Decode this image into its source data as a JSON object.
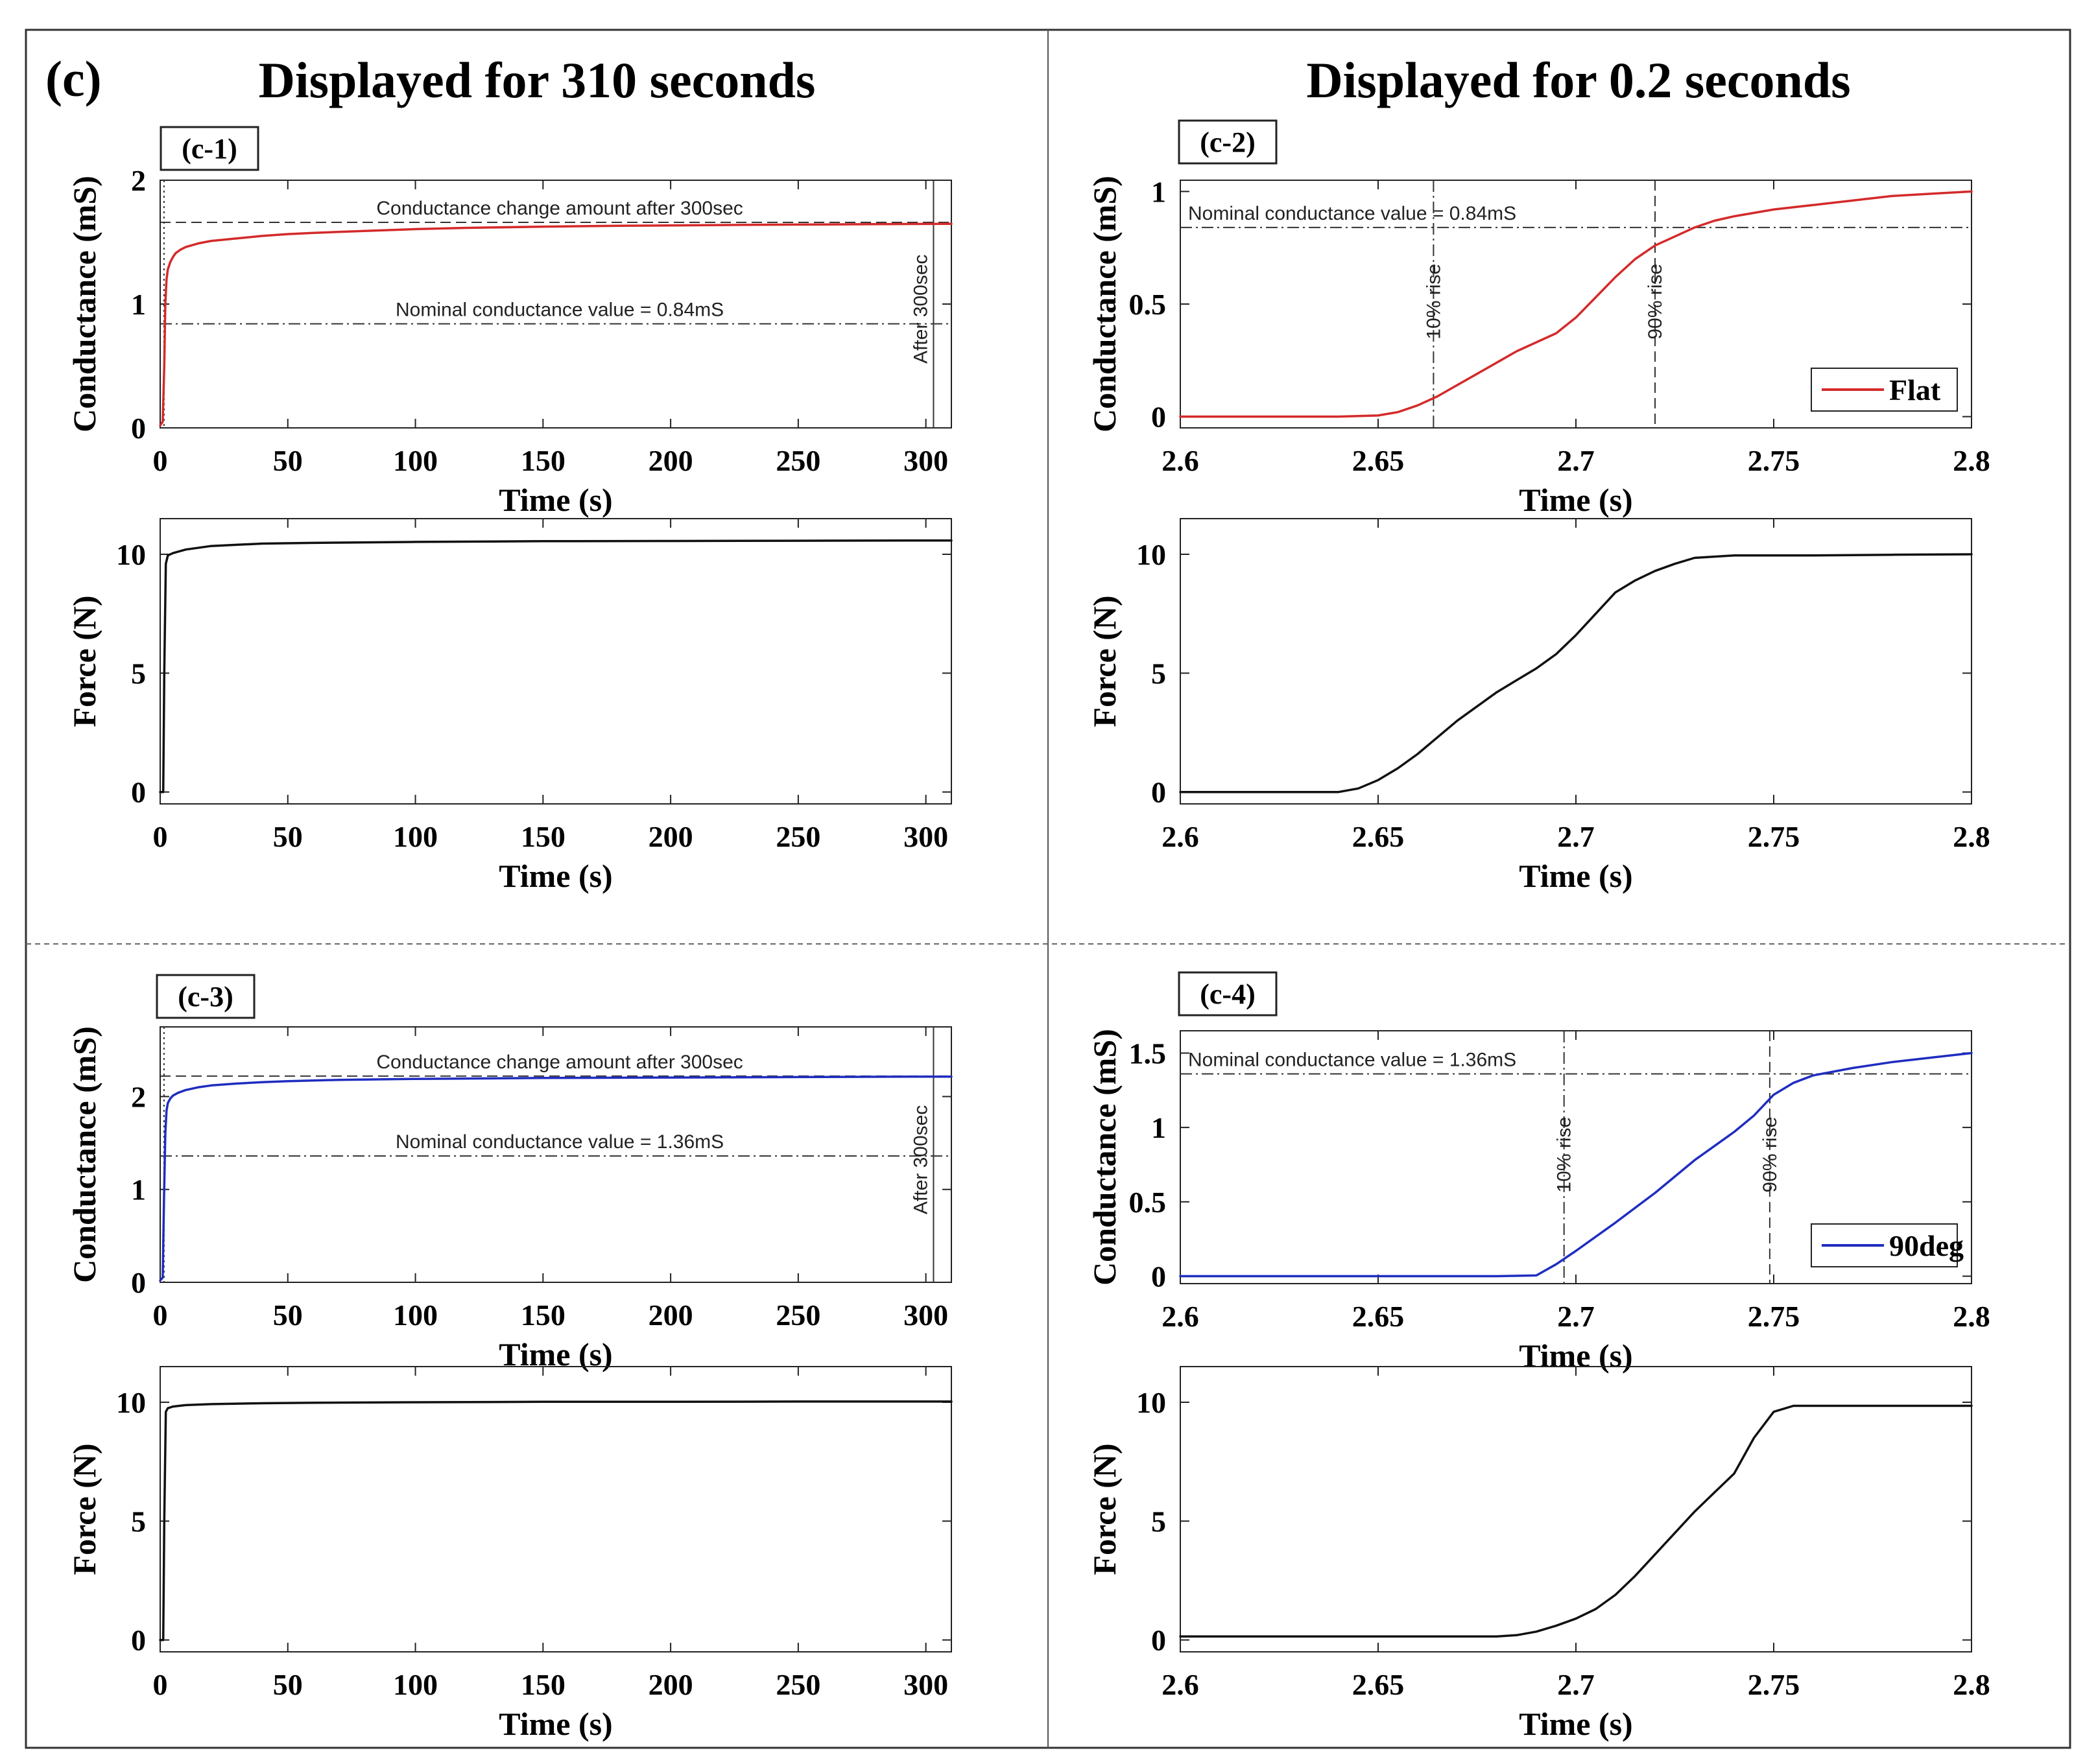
{
  "figure_label": "(c)",
  "column_titles": [
    "Displayed for 310 seconds",
    "Displayed for 0.2 seconds"
  ],
  "colors": {
    "flat": "#d42a2a",
    "deg90": "#1f2dbf",
    "force": "#111111"
  },
  "chart_data": [
    {
      "id": "c1-conductance",
      "type": "line",
      "panel_label": "(c-1)",
      "xlabel": "Time (s)",
      "ylabel": "Conductance (mS)",
      "xlim": [
        0,
        310
      ],
      "ylim": [
        0,
        2
      ],
      "xticks": [
        0,
        50,
        100,
        150,
        200,
        250,
        300
      ],
      "xtick_labels": [
        "0",
        "50",
        "100",
        "150",
        "200",
        "250",
        "300"
      ],
      "yticks": [
        0,
        1,
        2
      ],
      "ytick_labels": [
        "0",
        "1",
        "2"
      ],
      "series": [
        {
          "name": "Flat",
          "color": "#d42a2a",
          "x": [
            0,
            1,
            1.6,
            2.0,
            2.5,
            3,
            4,
            5,
            6,
            8,
            10,
            15,
            20,
            30,
            40,
            50,
            60,
            80,
            100,
            120,
            150,
            180,
            200,
            220,
            250,
            280,
            300,
            310
          ],
          "y": [
            0.02,
            0.05,
            0.5,
            1.0,
            1.2,
            1.28,
            1.34,
            1.38,
            1.41,
            1.44,
            1.46,
            1.49,
            1.51,
            1.53,
            1.55,
            1.565,
            1.575,
            1.59,
            1.605,
            1.615,
            1.625,
            1.632,
            1.635,
            1.638,
            1.642,
            1.645,
            1.647,
            1.648
          ]
        }
      ],
      "hlines": [
        {
          "y": 1.66,
          "style": "dashed",
          "label": "Conductance change amount after 300sec"
        },
        {
          "y": 0.84,
          "style": "dashdot",
          "label": "Nominal conductance value = 0.84mS"
        }
      ],
      "vlines": [
        {
          "x": 1.5,
          "style": "dotted",
          "label": ""
        },
        {
          "x": 303,
          "style": "solid",
          "label": "After 300sec"
        }
      ]
    },
    {
      "id": "c1-force",
      "type": "line",
      "panel_label": "",
      "xlabel": "Time (s)",
      "ylabel": "Force (N)",
      "xlim": [
        0,
        310
      ],
      "ylim": [
        -0.5,
        11.5
      ],
      "xticks": [
        0,
        50,
        100,
        150,
        200,
        250,
        300
      ],
      "xtick_labels": [
        "0",
        "50",
        "100",
        "150",
        "200",
        "250",
        "300"
      ],
      "yticks": [
        0,
        5,
        10
      ],
      "ytick_labels": [
        "0",
        "5",
        "10"
      ],
      "series": [
        {
          "name": "Force",
          "color": "#111111",
          "x": [
            0,
            1.2,
            1.6,
            2.2,
            3,
            5,
            10,
            20,
            40,
            60,
            100,
            150,
            200,
            250,
            300,
            310
          ],
          "y": [
            0,
            0,
            5,
            9.6,
            9.95,
            10.05,
            10.2,
            10.35,
            10.45,
            10.48,
            10.52,
            10.55,
            10.56,
            10.57,
            10.58,
            10.58
          ]
        }
      ],
      "hlines": [],
      "vlines": []
    },
    {
      "id": "c2-conductance",
      "type": "line",
      "panel_label": "(c-2)",
      "xlabel": "Time (s)",
      "ylabel": "Conductance (mS)",
      "xlim": [
        2.6,
        2.8
      ],
      "ylim": [
        -0.05,
        1.05
      ],
      "xticks": [
        2.6,
        2.65,
        2.7,
        2.75,
        2.8
      ],
      "xtick_labels": [
        "2.6",
        "2.65",
        "2.7",
        "2.75",
        "2.8"
      ],
      "yticks": [
        0,
        0.5,
        1
      ],
      "ytick_labels": [
        "0",
        "0.5",
        "1"
      ],
      "legend": {
        "label": "Flat",
        "placement": "bottom-right"
      },
      "series": [
        {
          "name": "Flat",
          "color": "#d42a2a",
          "x": [
            2.6,
            2.62,
            2.64,
            2.65,
            2.655,
            2.66,
            2.665,
            2.67,
            2.675,
            2.68,
            2.685,
            2.69,
            2.695,
            2.7,
            2.705,
            2.71,
            2.715,
            2.72,
            2.725,
            2.73,
            2.735,
            2.74,
            2.75,
            2.76,
            2.77,
            2.78,
            2.79,
            2.8
          ],
          "y": [
            0,
            0,
            0,
            0.005,
            0.02,
            0.05,
            0.09,
            0.14,
            0.19,
            0.24,
            0.29,
            0.33,
            0.37,
            0.44,
            0.53,
            0.62,
            0.7,
            0.76,
            0.8,
            0.84,
            0.87,
            0.89,
            0.92,
            0.94,
            0.96,
            0.98,
            0.99,
            1.0
          ]
        }
      ],
      "hlines": [
        {
          "y": 0.84,
          "style": "dashdot",
          "label": "Nominal conductance value = 0.84mS"
        }
      ],
      "vlines": [
        {
          "x": 2.664,
          "style": "dashdot",
          "label": "10% rise"
        },
        {
          "x": 2.72,
          "style": "dashed",
          "label": "90% rise"
        }
      ]
    },
    {
      "id": "c2-force",
      "type": "line",
      "panel_label": "",
      "xlabel": "Time (s)",
      "ylabel": "Force (N)",
      "xlim": [
        2.6,
        2.8
      ],
      "ylim": [
        -0.5,
        11.5
      ],
      "xticks": [
        2.6,
        2.65,
        2.7,
        2.75,
        2.8
      ],
      "xtick_labels": [
        "2.6",
        "2.65",
        "2.7",
        "2.75",
        "2.8"
      ],
      "yticks": [
        0,
        5,
        10
      ],
      "ytick_labels": [
        "0",
        "5",
        "10"
      ],
      "series": [
        {
          "name": "Force",
          "color": "#111111",
          "x": [
            2.6,
            2.62,
            2.64,
            2.645,
            2.65,
            2.655,
            2.66,
            2.665,
            2.67,
            2.675,
            2.68,
            2.685,
            2.69,
            2.695,
            2.7,
            2.705,
            2.71,
            2.715,
            2.72,
            2.725,
            2.73,
            2.74,
            2.75,
            2.76,
            2.78,
            2.8
          ],
          "y": [
            0,
            0,
            0,
            0.15,
            0.5,
            1.0,
            1.6,
            2.3,
            3.0,
            3.6,
            4.2,
            4.7,
            5.2,
            5.8,
            6.6,
            7.5,
            8.4,
            8.9,
            9.3,
            9.6,
            9.85,
            9.95,
            9.95,
            9.95,
            9.98,
            10.0
          ]
        }
      ],
      "hlines": [],
      "vlines": []
    },
    {
      "id": "c3-conductance",
      "type": "line",
      "panel_label": "(c-3)",
      "xlabel": "Time (s)",
      "ylabel": "Conductance (mS)",
      "xlim": [
        0,
        310
      ],
      "ylim": [
        0,
        2.75
      ],
      "xticks": [
        0,
        50,
        100,
        150,
        200,
        250,
        300
      ],
      "xtick_labels": [
        "0",
        "50",
        "100",
        "150",
        "200",
        "250",
        "300"
      ],
      "yticks": [
        0,
        1,
        2
      ],
      "ytick_labels": [
        "0",
        "1",
        "2"
      ],
      "series": [
        {
          "name": "90deg",
          "color": "#1f2dbf",
          "x": [
            0,
            1,
            1.5,
            2.0,
            2.5,
            3,
            4,
            5,
            7,
            10,
            15,
            20,
            30,
            40,
            50,
            70,
            100,
            150,
            200,
            250,
            300,
            310
          ],
          "y": [
            0.02,
            0.05,
            0.9,
            1.6,
            1.85,
            1.93,
            1.98,
            2.01,
            2.04,
            2.07,
            2.1,
            2.12,
            2.14,
            2.155,
            2.165,
            2.18,
            2.19,
            2.2,
            2.205,
            2.21,
            2.215,
            2.215
          ]
        }
      ],
      "hlines": [
        {
          "y": 2.22,
          "style": "dashed",
          "label": "Conductance change amount after 300sec"
        },
        {
          "y": 1.36,
          "style": "dashdot",
          "label": "Nominal conductance value = 1.36mS"
        }
      ],
      "vlines": [
        {
          "x": 1.5,
          "style": "dotted",
          "label": ""
        },
        {
          "x": 303,
          "style": "solid",
          "label": "After 300sec"
        }
      ]
    },
    {
      "id": "c3-force",
      "type": "line",
      "panel_label": "",
      "xlabel": "Time (s)",
      "ylabel": "Force (N)",
      "xlim": [
        0,
        310
      ],
      "ylim": [
        -0.5,
        11.5
      ],
      "xticks": [
        0,
        50,
        100,
        150,
        200,
        250,
        300
      ],
      "xtick_labels": [
        "0",
        "50",
        "100",
        "150",
        "200",
        "250",
        "300"
      ],
      "yticks": [
        0,
        5,
        10
      ],
      "ytick_labels": [
        "0",
        "5",
        "10"
      ],
      "series": [
        {
          "name": "Force",
          "color": "#111111",
          "x": [
            0,
            1.2,
            1.6,
            2.2,
            3,
            5,
            10,
            20,
            40,
            60,
            100,
            150,
            200,
            250,
            300,
            310
          ],
          "y": [
            0,
            0,
            5,
            9.6,
            9.75,
            9.82,
            9.88,
            9.92,
            9.96,
            9.98,
            10.0,
            10.02,
            10.02,
            10.03,
            10.03,
            10.03
          ]
        }
      ],
      "hlines": [],
      "vlines": []
    },
    {
      "id": "c4-conductance",
      "type": "line",
      "panel_label": "(c-4)",
      "xlabel": "Time (s)",
      "ylabel": "Conductance (mS)",
      "xlim": [
        2.6,
        2.8
      ],
      "ylim": [
        -0.05,
        1.65
      ],
      "xticks": [
        2.6,
        2.65,
        2.7,
        2.75,
        2.8
      ],
      "xtick_labels": [
        "2.6",
        "2.65",
        "2.7",
        "2.75",
        "2.8"
      ],
      "yticks": [
        0,
        0.5,
        1,
        1.5
      ],
      "ytick_labels": [
        "0",
        "0.5",
        "1",
        "1.5"
      ],
      "legend": {
        "label": "90deg",
        "placement": "bottom-right"
      },
      "series": [
        {
          "name": "90deg",
          "color": "#1f2dbf",
          "x": [
            2.6,
            2.64,
            2.68,
            2.69,
            2.695,
            2.7,
            2.71,
            2.72,
            2.73,
            2.74,
            2.745,
            2.75,
            2.755,
            2.76,
            2.77,
            2.78,
            2.79,
            2.8
          ],
          "y": [
            0,
            0,
            0,
            0.005,
            0.08,
            0.17,
            0.36,
            0.56,
            0.78,
            0.97,
            1.08,
            1.22,
            1.3,
            1.35,
            1.4,
            1.44,
            1.47,
            1.5
          ]
        }
      ],
      "hlines": [
        {
          "y": 1.36,
          "style": "dashdot",
          "label": "Nominal conductance value = 1.36mS"
        }
      ],
      "vlines": [
        {
          "x": 2.697,
          "style": "dashdot",
          "label": "10% rise"
        },
        {
          "x": 2.749,
          "style": "dashed",
          "label": "90% rise"
        }
      ]
    },
    {
      "id": "c4-force",
      "type": "line",
      "panel_label": "",
      "xlabel": "Time (s)",
      "ylabel": "Force (N)",
      "xlim": [
        2.6,
        2.8
      ],
      "ylim": [
        -0.5,
        11.5
      ],
      "xticks": [
        2.6,
        2.65,
        2.7,
        2.75,
        2.8
      ],
      "xtick_labels": [
        "2.6",
        "2.65",
        "2.7",
        "2.75",
        "2.8"
      ],
      "yticks": [
        0,
        5,
        10
      ],
      "ytick_labels": [
        "0",
        "5",
        "10"
      ],
      "series": [
        {
          "name": "Force",
          "color": "#111111",
          "x": [
            2.6,
            2.65,
            2.68,
            2.685,
            2.69,
            2.695,
            2.7,
            2.705,
            2.71,
            2.715,
            2.72,
            2.725,
            2.73,
            2.735,
            2.74,
            2.745,
            2.75,
            2.755,
            2.76,
            2.78,
            2.8
          ],
          "y": [
            0.15,
            0.15,
            0.15,
            0.2,
            0.35,
            0.6,
            0.9,
            1.3,
            1.9,
            2.7,
            3.6,
            4.5,
            5.4,
            6.2,
            7.0,
            8.5,
            9.6,
            9.85,
            9.85,
            9.85,
            9.85
          ]
        }
      ],
      "hlines": [],
      "vlines": []
    }
  ]
}
